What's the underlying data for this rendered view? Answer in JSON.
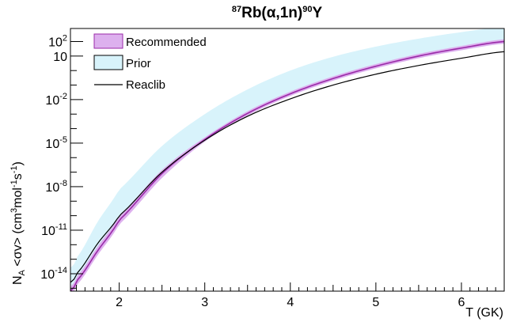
{
  "chart_data": {
    "type": "line",
    "title": {
      "pre_sup": "87",
      "main": "Rb(α,1n)",
      "post_sup": "90",
      "tail": "Y"
    },
    "xlabel": "T (GK)",
    "ylabel": {
      "base": "N",
      "sub": "A",
      "rest": " <σv> (cm",
      "s1": "3",
      "mid": "mol",
      "s2": "-1",
      "mid2": "s",
      "s3": "-1",
      "end": ")"
    },
    "xlim": [
      1.43,
      6.5
    ],
    "ylim_log10": [
      -15.2,
      2.9
    ],
    "y_scale": "log",
    "x_ticks": [
      {
        "v": 2,
        "label": "2"
      },
      {
        "v": 3,
        "label": "3"
      },
      {
        "v": 4,
        "label": "4"
      },
      {
        "v": 5,
        "label": "5"
      },
      {
        "v": 6,
        "label": "6"
      }
    ],
    "y_ticks": [
      {
        "e": 2,
        "base": "10",
        "exp": "2"
      },
      {
        "e": 1,
        "base": "10",
        "exp": ""
      },
      {
        "e": -2,
        "base": "10",
        "exp": "-2"
      },
      {
        "e": -5,
        "base": "10",
        "exp": "-5"
      },
      {
        "e": -8,
        "base": "10",
        "exp": "-8"
      },
      {
        "e": -11,
        "base": "10",
        "exp": "-11"
      },
      {
        "e": -14,
        "base": "10",
        "exp": "-14"
      }
    ],
    "legend": {
      "position": "top-left",
      "items": [
        {
          "label": "Recommended",
          "kind": "band",
          "fill": "#ddb0ee",
          "stroke": "#9a2aa8"
        },
        {
          "label": "Prior",
          "kind": "band",
          "fill": "#d8f3fb",
          "stroke": "#000000"
        },
        {
          "label": "Reaclib",
          "kind": "line",
          "stroke": "#000000"
        }
      ]
    },
    "series": [
      {
        "name": "Prior",
        "kind": "band",
        "color": "#d8f3fb",
        "x": [
          1.43,
          1.5,
          1.75,
          2.0,
          2.5,
          3.0,
          3.5,
          4.0,
          4.5,
          5.0,
          5.5,
          6.0,
          6.5
        ],
        "lower_log10": [
          -15.3,
          -14.7,
          -12.6,
          -10.4,
          -7.3,
          -4.9,
          -3.1,
          -1.7,
          -0.6,
          0.2,
          0.9,
          1.4,
          1.85
        ],
        "upper_log10": [
          -13.6,
          -12.9,
          -10.4,
          -8.2,
          -5.2,
          -3.0,
          -1.3,
          0.0,
          0.95,
          1.65,
          2.2,
          2.65,
          3.0
        ]
      },
      {
        "name": "Recommended",
        "kind": "band",
        "color": "#ddb0ee",
        "line_color": "#9a2aa8",
        "x": [
          1.43,
          1.5,
          1.75,
          2.0,
          2.5,
          3.0,
          3.5,
          4.0,
          4.5,
          5.0,
          5.5,
          6.0,
          6.5
        ],
        "lower_log10": [
          -15.5,
          -14.8,
          -12.7,
          -10.6,
          -7.4,
          -4.9,
          -3.1,
          -1.75,
          -0.7,
          0.15,
          0.85,
          1.4,
          1.85
        ],
        "central_log10": [
          -15.2,
          -14.5,
          -12.4,
          -10.3,
          -7.1,
          -4.75,
          -2.95,
          -1.6,
          -0.55,
          0.3,
          1.0,
          1.55,
          2.0
        ],
        "upper_log10": [
          -14.9,
          -14.2,
          -12.1,
          -10.0,
          -6.85,
          -4.6,
          -2.8,
          -1.45,
          -0.4,
          0.45,
          1.15,
          1.7,
          2.15
        ]
      },
      {
        "name": "Reaclib",
        "kind": "line",
        "color": "#000000",
        "x": [
          1.43,
          1.5,
          1.75,
          2.0,
          2.5,
          3.0,
          3.5,
          4.0,
          4.5,
          5.0,
          5.5,
          6.0,
          6.5
        ],
        "y_log10": [
          -14.6,
          -14.0,
          -11.9,
          -10.0,
          -7.0,
          -4.8,
          -3.15,
          -1.95,
          -1.0,
          -0.25,
          0.35,
          0.85,
          1.3
        ]
      }
    ]
  }
}
